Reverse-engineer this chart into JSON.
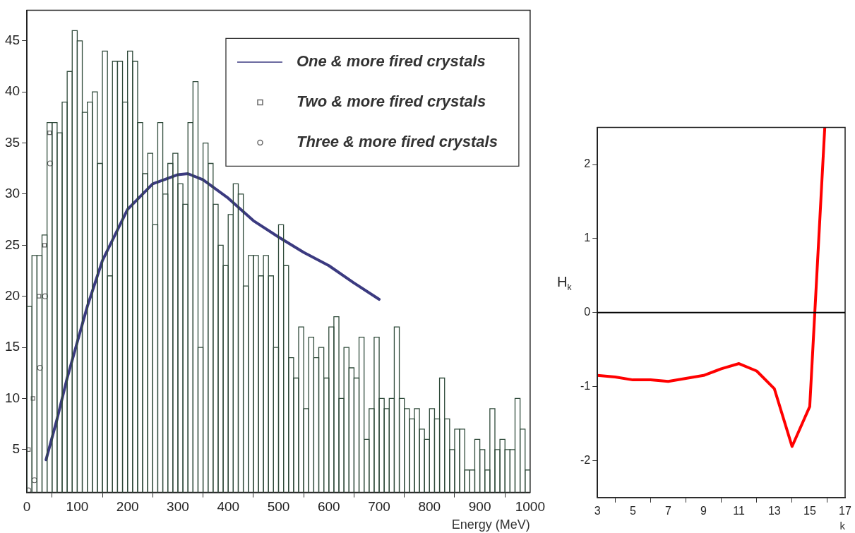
{
  "chart_data": [
    {
      "type": "histogram",
      "xlabel": "Energy (MeV)",
      "xlim": [
        0,
        1000
      ],
      "ylim": [
        0.8,
        48
      ],
      "xticks": [
        0,
        100,
        200,
        300,
        400,
        500,
        600,
        700,
        800,
        900,
        1000
      ],
      "yticks": [
        5,
        10,
        15,
        20,
        25,
        30,
        35,
        40,
        45
      ],
      "grid": false,
      "legend": "top right",
      "bins": [
        0,
        10,
        20,
        30,
        40,
        50,
        60,
        70,
        80,
        90,
        100,
        110,
        120,
        130,
        140,
        150,
        160,
        170,
        180,
        190,
        200,
        210,
        220,
        230,
        240,
        250,
        260,
        270,
        280,
        290,
        300,
        310,
        320,
        330,
        340,
        350,
        360,
        370,
        380,
        390,
        400,
        410,
        420,
        430,
        440,
        450,
        460,
        470,
        480,
        490,
        500,
        510,
        520,
        530,
        540,
        550,
        560,
        570,
        580,
        590,
        600,
        610,
        620,
        630,
        640,
        650,
        660,
        670,
        680,
        690,
        700,
        710,
        720,
        730,
        740,
        750,
        760,
        770,
        780,
        790,
        800,
        810,
        820,
        830,
        840,
        850,
        860,
        870,
        880,
        890,
        900,
        910,
        920,
        930,
        940,
        950,
        960,
        970,
        980,
        990,
        1000
      ],
      "color": "#2f4a3a",
      "values": [
        19,
        24,
        24,
        26,
        37,
        37,
        36,
        39,
        42,
        46,
        45,
        38,
        39,
        40,
        33,
        44,
        22,
        43,
        43,
        39,
        44,
        43,
        37,
        32,
        34,
        27,
        37,
        30,
        33,
        34,
        31,
        29,
        37,
        41,
        15,
        35,
        33,
        29,
        25,
        23,
        28,
        31,
        30,
        21,
        24,
        24,
        22,
        24,
        22,
        15,
        27,
        23,
        14,
        12,
        17,
        9,
        16,
        14,
        15,
        12,
        17,
        18,
        10,
        15,
        13,
        12,
        16,
        6,
        9,
        16,
        10,
        9,
        10,
        17,
        10,
        9,
        8,
        9,
        7,
        6,
        9,
        8,
        12,
        8,
        5,
        7,
        7,
        3,
        3,
        6,
        5,
        3,
        9,
        5,
        6,
        5,
        5,
        10,
        7,
        3
      ],
      "series": [
        {
          "name": "One & more fired crystals",
          "type": "line",
          "color": "#3b3a80",
          "x": [
            38,
            60,
            80,
            100,
            120,
            150,
            200,
            250,
            300,
            320,
            350,
            400,
            450,
            500,
            550,
            600,
            650,
            700
          ],
          "values": [
            4,
            8,
            12,
            15.5,
            19,
            23.5,
            28.5,
            31,
            31.9,
            32,
            31.4,
            29.6,
            27.4,
            25.8,
            24.3,
            23,
            21.3,
            19.7
          ]
        },
        {
          "name": "Two & more fired crystals",
          "type": "scatter",
          "marker": "square",
          "color": "#6b6b6b",
          "x": [
            3,
            12,
            24,
            35,
            45
          ],
          "values": [
            5,
            10,
            20,
            25,
            36
          ]
        },
        {
          "name": "Three & more fired crystals",
          "type": "scatter",
          "marker": "circle",
          "color": "#6b6b6b",
          "x": [
            3,
            15,
            26,
            36,
            46
          ],
          "values": [
            1,
            2,
            13,
            20,
            33
          ]
        }
      ]
    },
    {
      "type": "line",
      "xlabel": "k",
      "ylabel": "H$_{k}$",
      "xlim": [
        3,
        17
      ],
      "ylim": [
        -2.5,
        2.5
      ],
      "xticks": [
        3,
        5,
        7,
        9,
        11,
        13,
        15,
        17
      ],
      "yticks": [
        -2,
        -1,
        0,
        1,
        2
      ],
      "grid": false,
      "x": [
        3,
        4,
        5,
        6,
        7,
        8,
        9,
        10,
        11,
        12,
        13,
        14,
        15,
        15.85
      ],
      "series": [
        {
          "color": "#ff0000",
          "values": [
            -0.85,
            -0.87,
            -0.91,
            -0.91,
            -0.93,
            -0.89,
            -0.85,
            -0.76,
            -0.69,
            -0.79,
            -1.03,
            -1.81,
            -1.27,
            2.5
          ]
        }
      ],
      "ref_lines": [
        {
          "axis": "y",
          "value": 0,
          "color": "#000000"
        }
      ]
    }
  ]
}
